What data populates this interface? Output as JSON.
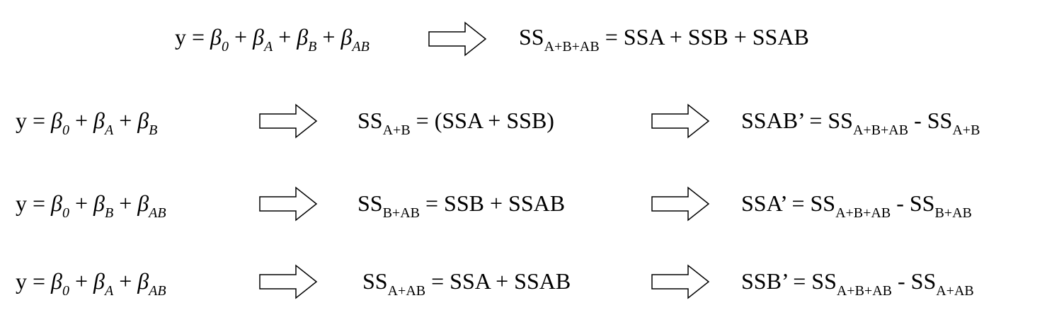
{
  "rows": [
    {
      "model": {
        "y": "y",
        "eq": "=",
        "plus": "+",
        "beta": "β",
        "t1": "0",
        "t2": "A",
        "t3": "B",
        "t4": "AB"
      },
      "ss": {
        "ss": "SS",
        "sub": "A+B+AB",
        "eq": "=",
        "rhs": "SSA + SSB + SSAB"
      }
    },
    {
      "model": {
        "y": "y",
        "eq": "=",
        "plus": "+",
        "beta": "β",
        "t1": "0",
        "t2": "A",
        "t3": "B"
      },
      "ss": {
        "ss": "SS",
        "sub": "A+B",
        "eq": "=",
        "rhs": "(SSA + SSB)"
      },
      "diff": {
        "lhs": "SSAB’",
        "eq": "=",
        "ss": "SS",
        "sub1": "A+B+AB",
        "minus": "-",
        "sub2": "A+B"
      }
    },
    {
      "model": {
        "y": "y",
        "eq": "=",
        "plus": "+",
        "beta": "β",
        "t1": "0",
        "t2": "B",
        "t3": "AB"
      },
      "ss": {
        "ss": "SS",
        "sub": "B+AB",
        "eq": "=",
        "rhs": "SSB + SSAB"
      },
      "diff": {
        "lhs": "SSA’",
        "eq": "=",
        "ss": "SS",
        "sub1": "A+B+AB",
        "minus": "-",
        "sub2": "B+AB"
      }
    },
    {
      "model": {
        "y": "y",
        "eq": "=",
        "plus": "+",
        "beta": "β",
        "t1": "0",
        "t2": "A",
        "t3": "AB"
      },
      "ss": {
        "ss": "SS",
        "sub": "A+AB",
        "eq": "=",
        "rhs": "SSA + SSAB"
      },
      "diff": {
        "lhs": "SSB’",
        "eq": "=",
        "ss": "SS",
        "sub1": "A+B+AB",
        "minus": "-",
        "sub2": "A+AB"
      }
    }
  ],
  "arrow_icon": "block-right-arrow-icon"
}
